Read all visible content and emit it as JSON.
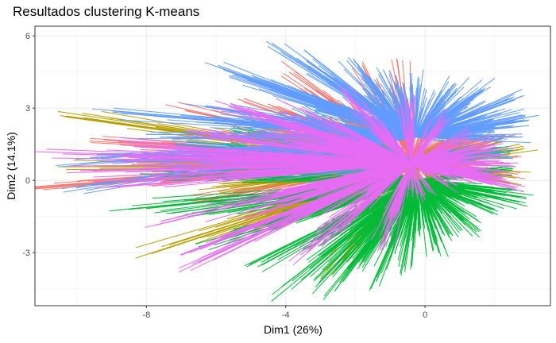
{
  "chart_data": {
    "type": "scatter",
    "title": "Resultados clustering K-means",
    "xlabel": "Dim1 (26%)",
    "ylabel": "Dim2 (14.1%)",
    "xlim": [
      -11.2,
      3.6
    ],
    "ylim": [
      -5.2,
      6.4
    ],
    "x_ticks": [
      -8,
      -4,
      0
    ],
    "y_ticks": [
      -3,
      0,
      3,
      6
    ],
    "grid": true,
    "legend": "none",
    "center": [
      -0.4,
      0.7
    ],
    "series": [
      {
        "color": "#F8766D",
        "center": [
          -0.4,
          0.9
        ],
        "points": [
          [
            -10.5,
            -0.2
          ],
          [
            -8.8,
            1.6
          ],
          [
            -7.5,
            0.4
          ],
          [
            -6.9,
            2.9
          ],
          [
            -6.2,
            -0.8
          ],
          [
            -5.8,
            1.9
          ],
          [
            -5.2,
            3.4
          ],
          [
            -4.8,
            -1.5
          ],
          [
            -4.4,
            0.2
          ],
          [
            -3.9,
            4.5
          ],
          [
            -3.6,
            2.4
          ],
          [
            -3.1,
            -0.5
          ],
          [
            -2.7,
            3.2
          ],
          [
            -2.3,
            1.1
          ],
          [
            -1.8,
            4.8
          ],
          [
            -1.5,
            -0.9
          ],
          [
            -0.9,
            3.6
          ],
          [
            -0.8,
            5.0
          ],
          [
            -0.4,
            0.3
          ],
          [
            0.2,
            2.7
          ],
          [
            0.6,
            -0.4
          ],
          [
            1.1,
            1.5
          ],
          [
            1.6,
            2.3
          ],
          [
            2.0,
            0.6
          ],
          [
            2.3,
            1.9
          ],
          [
            2.5,
            0.2
          ],
          [
            -2.1,
            2.9
          ],
          [
            -5.5,
            0.8
          ]
        ]
      },
      {
        "color": "#B79F00",
        "center": [
          -0.2,
          0.6
        ],
        "points": [
          [
            -9.8,
            2.6
          ],
          [
            -9.5,
            0.6
          ],
          [
            -7.8,
            -3.0
          ],
          [
            -6.6,
            1.3
          ],
          [
            -6.0,
            -0.3
          ],
          [
            -5.4,
            2.2
          ],
          [
            -4.9,
            -2.1
          ],
          [
            -4.3,
            1.6
          ],
          [
            -3.7,
            -1.1
          ],
          [
            -3.2,
            0.5
          ],
          [
            -2.6,
            -3.6
          ],
          [
            -2.1,
            1.9
          ],
          [
            -1.6,
            -2.4
          ],
          [
            -1.2,
            0.9
          ],
          [
            -0.5,
            -1.8
          ],
          [
            0.3,
            1.4
          ],
          [
            0.9,
            -0.7
          ],
          [
            1.5,
            0.8
          ],
          [
            2.1,
            1.6
          ],
          [
            2.6,
            0.1
          ],
          [
            2.8,
            1.3
          ],
          [
            -3.0,
            2.6
          ],
          [
            -7.2,
            0.9
          ]
        ]
      },
      {
        "color": "#00BA38",
        "center": [
          -0.2,
          0.0
        ],
        "points": [
          [
            -8.5,
            -1.2
          ],
          [
            -7.9,
            0.2
          ],
          [
            -6.8,
            -1.5
          ],
          [
            -6.1,
            -2.6
          ],
          [
            -5.3,
            -2.0
          ],
          [
            -4.7,
            -3.4
          ],
          [
            -4.1,
            -4.4
          ],
          [
            -3.5,
            -2.9
          ],
          [
            -3.0,
            -4.1
          ],
          [
            -2.6,
            -4.6
          ],
          [
            -2.2,
            -3.7
          ],
          [
            -1.8,
            -3.3
          ],
          [
            -1.4,
            -4.2
          ],
          [
            -0.9,
            -2.7
          ],
          [
            -0.6,
            -3.6
          ],
          [
            -0.2,
            -2.1
          ],
          [
            0.4,
            -3.0
          ],
          [
            0.8,
            -2.3
          ],
          [
            1.2,
            -1.7
          ],
          [
            1.6,
            -2.1
          ],
          [
            2.0,
            -1.2
          ],
          [
            2.4,
            -0.6
          ],
          [
            2.7,
            -0.9
          ],
          [
            2.5,
            0.5
          ],
          [
            -1.0,
            -1.5
          ],
          [
            -2.8,
            -2.2
          ],
          [
            -5.7,
            1.5
          ],
          [
            -4.5,
            0.6
          ],
          [
            1.8,
            -0.5
          ],
          [
            0.1,
            -1.4
          ]
        ]
      },
      {
        "color": "#00BFC4",
        "center": [
          -0.4,
          0.8
        ],
        "points": [
          [
            -8.6,
            1.0
          ],
          [
            -7.2,
            1.5
          ],
          [
            -6.4,
            0.5
          ],
          [
            -5.1,
            2.0
          ],
          [
            -4.2,
            1.2
          ],
          [
            -3.6,
            0.4
          ],
          [
            -2.9,
            1.8
          ],
          [
            -2.2,
            0.6
          ],
          [
            -1.1,
            1.4
          ],
          [
            0.5,
            1.1
          ],
          [
            1.4,
            0.9
          ],
          [
            2.2,
            1.2
          ],
          [
            -3.3,
            2.8
          ],
          [
            -5.9,
            0.2
          ]
        ]
      },
      {
        "color": "#619CFF",
        "center": [
          -0.3,
          1.8
        ],
        "points": [
          [
            -9.9,
            0.7
          ],
          [
            -9.6,
            -0.2
          ],
          [
            -8.7,
            2.8
          ],
          [
            -7.4,
            1.8
          ],
          [
            -6.3,
            3.1
          ],
          [
            -5.8,
            4.6
          ],
          [
            -5.0,
            2.5
          ],
          [
            -4.4,
            5.7
          ],
          [
            -4.0,
            3.8
          ],
          [
            -3.5,
            5.1
          ],
          [
            -3.1,
            2.9
          ],
          [
            -2.6,
            4.0
          ],
          [
            -2.2,
            5.1
          ],
          [
            -1.7,
            3.5
          ],
          [
            -1.2,
            4.6
          ],
          [
            -0.7,
            3.9
          ],
          [
            -0.2,
            4.3
          ],
          [
            0.4,
            3.5
          ],
          [
            0.9,
            4.0
          ],
          [
            1.3,
            3.2
          ],
          [
            1.7,
            3.8
          ],
          [
            2.1,
            2.9
          ],
          [
            2.4,
            3.4
          ],
          [
            2.6,
            2.4
          ],
          [
            2.9,
            2.6
          ],
          [
            1.0,
            2.2
          ],
          [
            -0.9,
            2.8
          ],
          [
            -2.4,
            3.1
          ],
          [
            -4.9,
            4.1
          ],
          [
            2.7,
            1.8
          ]
        ]
      },
      {
        "color": "#E76BF3",
        "center": [
          -0.4,
          0.7
        ],
        "points": [
          [
            -10.4,
            1.1
          ],
          [
            -9.9,
            0.4
          ],
          [
            -8.7,
            -0.1
          ],
          [
            -8.2,
            1.4
          ],
          [
            -7.6,
            -1.7
          ],
          [
            -7.0,
            -3.1
          ],
          [
            -6.5,
            -3.4
          ],
          [
            -6.0,
            0.9
          ],
          [
            -5.5,
            3.1
          ],
          [
            -5.0,
            -1.2
          ],
          [
            -4.6,
            1.9
          ],
          [
            -4.1,
            -0.6
          ],
          [
            -3.6,
            3.0
          ],
          [
            -3.1,
            -2.0
          ],
          [
            -2.7,
            1.4
          ],
          [
            -2.3,
            3.6
          ],
          [
            -1.8,
            -0.3
          ],
          [
            -1.4,
            2.1
          ],
          [
            -1.0,
            -1.6
          ],
          [
            -0.5,
            3.3
          ],
          [
            0.0,
            -0.8
          ],
          [
            0.5,
            2.6
          ],
          [
            0.9,
            -0.2
          ],
          [
            1.3,
            1.8
          ],
          [
            1.7,
            0.3
          ],
          [
            2.0,
            1.5
          ],
          [
            2.2,
            0.1
          ],
          [
            2.4,
            1.1
          ],
          [
            2.5,
            0.6
          ],
          [
            2.6,
            -0.3
          ],
          [
            -6.8,
            2.1
          ],
          [
            -3.4,
            -3.0
          ],
          [
            -1.3,
            -2.9
          ],
          [
            -4.8,
            2.8
          ],
          [
            -2.0,
            0.5
          ]
        ]
      }
    ]
  }
}
